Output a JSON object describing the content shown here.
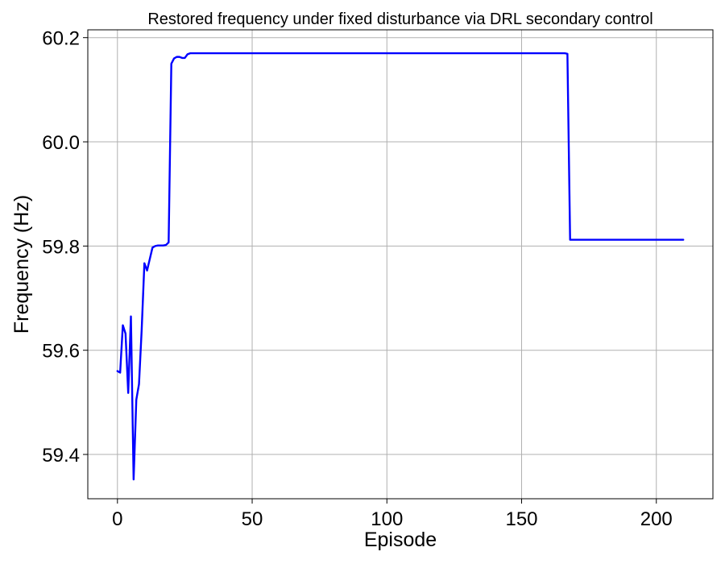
{
  "chart_data": {
    "type": "line",
    "title": "Restored frequency under fixed disturbance via DRL secondary control",
    "xlabel": "Episode",
    "ylabel": "Frequency (Hz)",
    "xlim": [
      -11,
      221
    ],
    "ylim": [
      59.315,
      60.215
    ],
    "xticks": [
      0,
      50,
      100,
      150,
      200
    ],
    "yticks": [
      59.4,
      59.6,
      59.8,
      60.0,
      60.2
    ],
    "xtick_labels": [
      "0",
      "50",
      "100",
      "150",
      "200"
    ],
    "ytick_labels": [
      "59.4",
      "59.6",
      "59.8",
      "60.0",
      "60.2"
    ],
    "grid": true,
    "legend": null,
    "series": [
      {
        "color": "#0000ff",
        "x": [
          0,
          1,
          2,
          3,
          4,
          5,
          6,
          7,
          8,
          9,
          10,
          11,
          12,
          13,
          14,
          15,
          16,
          17,
          18,
          19,
          20,
          21,
          22,
          23,
          24,
          25,
          26,
          27,
          28,
          30,
          40,
          60,
          80,
          100,
          120,
          140,
          160,
          166,
          167,
          168,
          169,
          170,
          180,
          190,
          200,
          210
        ],
        "y": [
          59.56,
          59.557,
          59.648,
          59.632,
          59.518,
          59.665,
          59.352,
          59.505,
          59.535,
          59.64,
          59.767,
          59.753,
          59.775,
          59.797,
          59.8,
          59.801,
          59.801,
          59.801,
          59.802,
          59.807,
          60.15,
          60.16,
          60.163,
          60.163,
          60.161,
          60.161,
          60.168,
          60.17,
          60.17,
          60.17,
          60.17,
          60.17,
          60.17,
          60.17,
          60.17,
          60.17,
          60.17,
          60.17,
          60.169,
          59.812,
          59.812,
          59.812,
          59.812,
          59.812,
          59.812,
          59.812
        ]
      }
    ]
  }
}
